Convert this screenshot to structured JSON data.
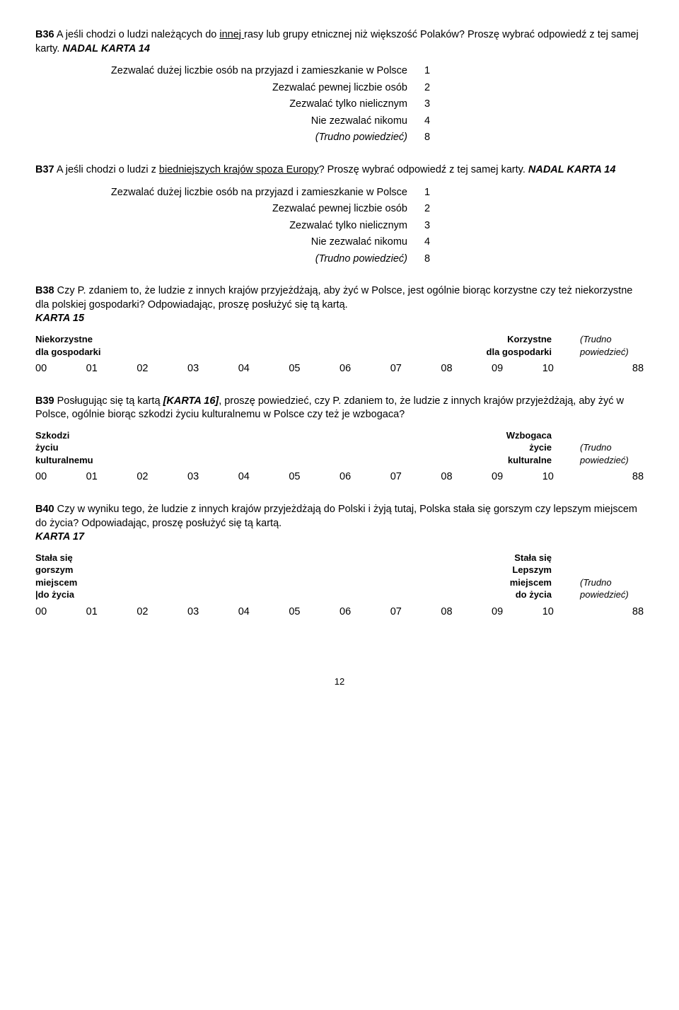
{
  "b36": {
    "code": "B36",
    "text_before_under": " A jeśli chodzi o ludzi należących do ",
    "under": "innej ",
    "text_after_under": "rasy lub grupy etnicznej niż większość Polaków? Proszę wybrać odpowiedź z tej samej karty. ",
    "karta": "NADAL KARTA 14",
    "opts": [
      {
        "label": "Zezwalać dużej liczbie osób na przyjazd i zamieszkanie w Polsce",
        "num": "1"
      },
      {
        "label": "Zezwalać pewnej liczbie osób",
        "num": "2"
      },
      {
        "label": "Zezwalać tylko nielicznym",
        "num": "3"
      },
      {
        "label": "Nie zezwalać nikomu",
        "num": "4"
      },
      {
        "label": "(Trudno powiedzieć)",
        "num": "8",
        "italic": true
      }
    ]
  },
  "b37": {
    "code": "B37",
    "text_before_under": " A jeśli chodzi o ludzi z ",
    "under": "biedniejszych krajów spoza Europy",
    "text_after_under": "? Proszę wybrać odpowiedź z tej samej karty. ",
    "karta": "NADAL KARTA 14",
    "opts": [
      {
        "label": "Zezwalać dużej liczbie osób na przyjazd i zamieszkanie w Polsce",
        "num": "1"
      },
      {
        "label": "Zezwalać pewnej liczbie osób",
        "num": "2"
      },
      {
        "label": "Zezwalać tylko nielicznym",
        "num": "3"
      },
      {
        "label": "Nie zezwalać nikomu",
        "num": "4"
      },
      {
        "label": "(Trudno powiedzieć)",
        "num": "8",
        "italic": true
      }
    ]
  },
  "b38": {
    "code": "B38",
    "text": " Czy P. zdaniem to, że ludzie z innych krajów przyjeżdżają, aby żyć w Polsce, jest ogólnie biorąc korzystne czy też niekorzystne dla polskiej gospodarki? Odpowiadając, proszę posłużyć się tą kartą. ",
    "karta": "KARTA 15",
    "left1": "Niekorzystne",
    "left2": "dla gospodarki",
    "right1": "Korzystne",
    "right2": "dla gospodarki",
    "trudno1": "(Trudno",
    "trudno2": "powiedzieć)",
    "nums": [
      "00",
      "01",
      "02",
      "03",
      "04",
      "05",
      "06",
      "07",
      "08",
      "09",
      "10",
      "88"
    ]
  },
  "b39": {
    "code": "B39",
    "text_a": " Posługując się tą kartą ",
    "karta_inline": "[KARTA 16]",
    "text_b": ", proszę powiedzieć, czy P. zdaniem to, że ludzie z innych krajów przyjeżdżają, aby żyć w Polsce, ogólnie biorąc szkodzi życiu kulturalnemu w Polsce czy też je wzbogaca?",
    "left1": "Szkodzi",
    "left2": "życiu",
    "left3": "kulturalnemu",
    "right1": "Wzbogaca",
    "right2": "życie",
    "right3": "kulturalne",
    "trudno1": "(Trudno",
    "trudno2": "powiedzieć)",
    "nums": [
      "00",
      "01",
      "02",
      "03",
      "04",
      "05",
      "06",
      "07",
      "08",
      "09",
      "10",
      "88"
    ]
  },
  "b40": {
    "code": "B40",
    "text": " Czy w wyniku tego, że ludzie z innych krajów przyjeżdżają do Polski i żyją tutaj, Polska stała się gorszym czy lepszym miejscem do życia? Odpowiadając, proszę posłużyć się tą kartą. ",
    "karta": "KARTA 17",
    "left1": "Stała się",
    "left2": "gorszym",
    "left3": "miejscem",
    "left4": "|do życia",
    "right1": "Stała się",
    "right2": "Lepszym",
    "right3": "miejscem",
    "right4": "do życia",
    "trudno1": "(Trudno",
    "trudno2": "powiedzieć)",
    "nums": [
      "00",
      "01",
      "02",
      "03",
      "04",
      "05",
      "06",
      "07",
      "08",
      "09",
      "10",
      "88"
    ]
  },
  "page": "12"
}
